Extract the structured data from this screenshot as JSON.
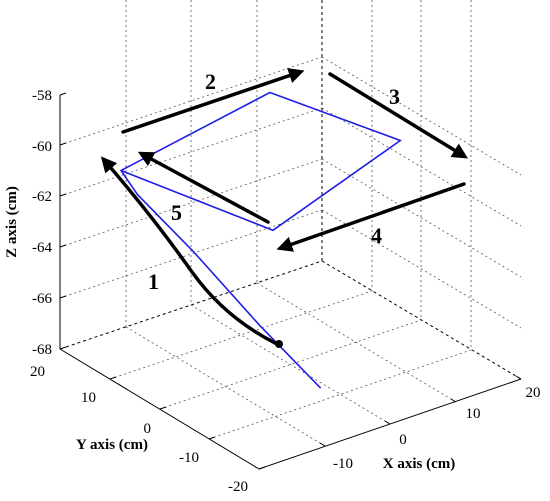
{
  "chart_data": {
    "type": "line",
    "projection": "3d",
    "grid": true,
    "box": true,
    "xlabel": "X axis (cm)",
    "ylabel": "Y axis (cm)",
    "zlabel": "Z axis (cm)",
    "x_ticks": [
      "-10",
      "0",
      "10",
      "20"
    ],
    "y_ticks": [
      "20",
      "10",
      "0",
      "-10",
      "-20"
    ],
    "z_ticks": [
      "-58",
      "-60",
      "-62",
      "-64",
      "-66",
      "-68"
    ],
    "xlim": [
      -20,
      20
    ],
    "ylim": [
      -20,
      20
    ],
    "zlim": [
      -68,
      -58
    ],
    "series": [
      {
        "color": "#1f1fe6",
        "points": [
          {
            "x": -3,
            "y": -10,
            "z": -67.5
          },
          {
            "x": -7,
            "y": -3,
            "z": -65.5
          },
          {
            "x": -11,
            "y": 5,
            "z": -63.2
          },
          {
            "x": -15,
            "y": 11,
            "z": -61.3
          },
          {
            "x": -16,
            "y": 13,
            "z": -60.5
          },
          {
            "x": 9,
            "y": 16,
            "z": -60.0
          },
          {
            "x": 16,
            "y": -1,
            "z": -60.5
          },
          {
            "x": -8,
            "y": -7,
            "z": -61.2
          },
          {
            "x": -16,
            "y": 13,
            "z": -60.5
          }
        ]
      }
    ],
    "annotations": [
      {
        "label": "1"
      },
      {
        "label": "2"
      },
      {
        "label": "3"
      },
      {
        "label": "4"
      },
      {
        "label": "5"
      }
    ]
  }
}
